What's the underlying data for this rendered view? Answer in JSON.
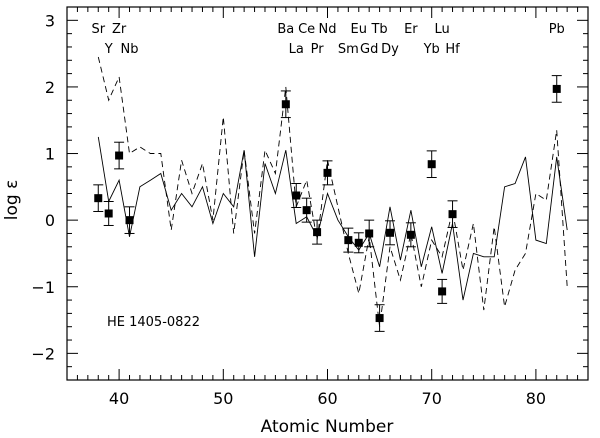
{
  "chart_data": {
    "type": "scatter",
    "xlabel": "Atomic Number",
    "ylabel": "log ε",
    "xlim": [
      35,
      85
    ],
    "ylim": [
      -2.4,
      3.2
    ],
    "x_ticks": [
      40,
      50,
      60,
      70,
      80
    ],
    "y_ticks": [
      -2,
      -1,
      0,
      1,
      2,
      3
    ],
    "annotation": "HE 1405-0822",
    "element_labels": [
      {
        "label": "Sr",
        "z": 38,
        "row": "top"
      },
      {
        "label": "Y",
        "z": 39,
        "row": "bottom"
      },
      {
        "label": "Zr",
        "z": 40,
        "row": "top"
      },
      {
        "label": "Nb",
        "z": 41,
        "row": "bottom"
      },
      {
        "label": "Ba",
        "z": 56,
        "row": "top"
      },
      {
        "label": "La",
        "z": 57,
        "row": "bottom"
      },
      {
        "label": "Ce",
        "z": 58,
        "row": "top"
      },
      {
        "label": "Pr",
        "z": 59,
        "row": "bottom"
      },
      {
        "label": "Nd",
        "z": 60,
        "row": "top"
      },
      {
        "label": "Sm",
        "z": 62,
        "row": "bottom"
      },
      {
        "label": "Eu",
        "z": 63,
        "row": "top"
      },
      {
        "label": "Gd",
        "z": 64,
        "row": "bottom"
      },
      {
        "label": "Tb",
        "z": 65,
        "row": "top"
      },
      {
        "label": "Dy",
        "z": 66,
        "row": "bottom"
      },
      {
        "label": "Er",
        "z": 68,
        "row": "top"
      },
      {
        "label": "Yb",
        "z": 70,
        "row": "bottom"
      },
      {
        "label": "Lu",
        "z": 71,
        "row": "top"
      },
      {
        "label": "Hf",
        "z": 72,
        "row": "bottom"
      },
      {
        "label": "Pb",
        "z": 82,
        "row": "top"
      }
    ],
    "points": [
      {
        "x": 38,
        "y": 0.33,
        "err": 0.2
      },
      {
        "x": 39,
        "y": 0.1,
        "err": 0.18
      },
      {
        "x": 40,
        "y": 0.97,
        "err": 0.2
      },
      {
        "x": 41,
        "y": 0.0,
        "err": 0.2
      },
      {
        "x": 56,
        "y": 1.74,
        "err": 0.2
      },
      {
        "x": 57,
        "y": 0.37,
        "err": 0.18
      },
      {
        "x": 58,
        "y": 0.15,
        "err": 0.18
      },
      {
        "x": 59,
        "y": -0.18,
        "err": 0.18
      },
      {
        "x": 60,
        "y": 0.71,
        "err": 0.18
      },
      {
        "x": 62,
        "y": -0.3,
        "err": 0.18
      },
      {
        "x": 63,
        "y": -0.34,
        "err": 0.15
      },
      {
        "x": 64,
        "y": -0.2,
        "err": 0.2
      },
      {
        "x": 65,
        "y": -1.47,
        "err": 0.2
      },
      {
        "x": 66,
        "y": -0.19,
        "err": 0.18
      },
      {
        "x": 68,
        "y": -0.22,
        "err": 0.18
      },
      {
        "x": 70,
        "y": 0.84,
        "err": 0.2
      },
      {
        "x": 71,
        "y": -1.07,
        "err": 0.18
      },
      {
        "x": 72,
        "y": 0.09,
        "err": 0.2
      },
      {
        "x": 82,
        "y": 1.97,
        "err": 0.2
      }
    ],
    "series": [
      {
        "style": "solid",
        "x": [
          38,
          39,
          40,
          41,
          42,
          43,
          44,
          45,
          46,
          47,
          48,
          49,
          50,
          51,
          52,
          53,
          54,
          55,
          56,
          57,
          58,
          59,
          60,
          61,
          62,
          63,
          64,
          65,
          66,
          67,
          68,
          69,
          70,
          71,
          72,
          73,
          74,
          75,
          76,
          77,
          78,
          79,
          80,
          81,
          82,
          83
        ],
        "y": [
          1.25,
          0.28,
          0.6,
          -0.25,
          0.5,
          0.6,
          0.7,
          0.15,
          0.4,
          0.2,
          0.5,
          -0.05,
          0.4,
          0.2,
          1.05,
          -0.55,
          0.85,
          0.4,
          1.05,
          -0.05,
          0.05,
          -0.25,
          0.4,
          0.0,
          -0.25,
          -0.45,
          -0.2,
          -0.7,
          0.2,
          -0.6,
          0.15,
          -0.7,
          -0.1,
          -0.8,
          -0.05,
          -1.2,
          -0.5,
          -0.55,
          -0.55,
          0.5,
          0.55,
          0.95,
          -0.3,
          -0.35,
          0.95,
          -0.15
        ]
      },
      {
        "style": "dashed",
        "x": [
          38,
          39,
          40,
          41,
          42,
          43,
          44,
          45,
          46,
          47,
          48,
          49,
          50,
          51,
          52,
          53,
          54,
          55,
          56,
          57,
          58,
          59,
          60,
          61,
          62,
          63,
          64,
          65,
          66,
          67,
          68,
          69,
          70,
          71,
          72,
          73,
          74,
          75,
          76,
          77,
          78,
          79,
          80,
          81,
          82,
          83
        ],
        "y": [
          2.45,
          1.8,
          2.15,
          1.0,
          1.1,
          1.0,
          1.0,
          -0.15,
          0.9,
          0.4,
          0.85,
          0.0,
          1.55,
          -0.2,
          1.05,
          -0.2,
          1.05,
          0.7,
          2.0,
          0.2,
          0.6,
          -0.3,
          0.9,
          0.2,
          -0.5,
          -1.1,
          -0.25,
          -1.6,
          -0.4,
          -0.9,
          -0.2,
          -1.0,
          -0.3,
          -0.55,
          0.15,
          -0.75,
          -0.05,
          -1.35,
          -0.1,
          -1.3,
          -0.75,
          -0.5,
          0.4,
          0.3,
          1.35,
          -1.0
        ]
      }
    ]
  }
}
